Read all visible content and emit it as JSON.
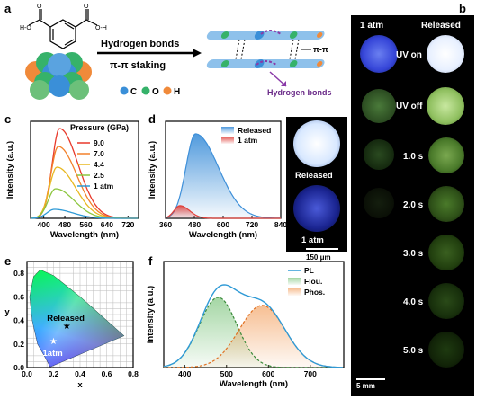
{
  "panel_labels": {
    "a": "a",
    "b": "b",
    "c": "c",
    "d": "d",
    "e": "e",
    "f": "f"
  },
  "panel_a": {
    "arrow_top_label": "Hydrogen bonds",
    "arrow_bottom_label": "π-π staking",
    "legend": [
      {
        "symbol": "●",
        "label": "C",
        "color": "#3a8fd8"
      },
      {
        "symbol": "●",
        "label": "O",
        "color": "#36b26a"
      },
      {
        "symbol": "●",
        "label": "H",
        "color": "#f08a3a"
      }
    ],
    "pi_label": "π-π",
    "hb_label": "Hydrogen bonds",
    "mol_labels": [
      "H-O",
      "O",
      "O",
      "O-H"
    ]
  },
  "panel_b": {
    "col_headers": [
      "1 atm",
      "Released"
    ],
    "row_labels": [
      "UV on",
      "UV off",
      "1.0 s",
      "2.0 s",
      "3.0 s",
      "4.0 s",
      "5.0 s"
    ],
    "scale_bar": "5 mm"
  },
  "panel_d_inset": {
    "label_top": "Released",
    "label_bottom": "1 atm",
    "scale_bar": "150 μm"
  },
  "chart_data": [
    {
      "id": "c",
      "type": "line",
      "title": "Pressure (GPa)",
      "xlabel": "Wavelength (nm)",
      "ylabel": "Intensity (a.u.)",
      "xlim": [
        350,
        760
      ],
      "xticks": [
        400,
        480,
        560,
        640,
        720
      ],
      "series": [
        {
          "name": "9.0",
          "color": "#e8392b",
          "peak": 460,
          "height": 1.0
        },
        {
          "name": "7.0",
          "color": "#f2812a",
          "peak": 455,
          "height": 0.8
        },
        {
          "name": "4.4",
          "color": "#e8b820",
          "peak": 450,
          "height": 0.57
        },
        {
          "name": "2.5",
          "color": "#8cc63f",
          "peak": 445,
          "height": 0.33
        },
        {
          "name": "1 atm",
          "color": "#2f9ad6",
          "peak": 440,
          "height": 0.1
        }
      ]
    },
    {
      "id": "d",
      "type": "area",
      "xlabel": "Wavelength (nm)",
      "ylabel": "Intensity (a.u.)",
      "xlim": [
        360,
        840
      ],
      "xticks": [
        360,
        480,
        600,
        720,
        840
      ],
      "series": [
        {
          "name": "Released",
          "color": "#3d8fd9",
          "peak": 485,
          "height": 1.0
        },
        {
          "name": "1 atm",
          "color": "#e0403a",
          "peak": 420,
          "height": 0.15
        }
      ]
    },
    {
      "id": "e",
      "type": "scatter",
      "xlabel": "x",
      "ylabel": "y",
      "xlim": [
        0,
        0.8
      ],
      "ylim": [
        0,
        0.9
      ],
      "xticks": [
        0.0,
        0.2,
        0.4,
        0.6,
        0.8
      ],
      "yticks": [
        0.0,
        0.2,
        0.4,
        0.6,
        0.8
      ],
      "points": [
        {
          "label": "Released",
          "x": 0.3,
          "y": 0.35,
          "color": "#000"
        },
        {
          "label": "1atm",
          "x": 0.2,
          "y": 0.22,
          "color": "#fff"
        }
      ]
    },
    {
      "id": "f",
      "type": "area",
      "xlabel": "Wavelength (nm)",
      "ylabel": "Intensity (a.u.)",
      "xlim": [
        350,
        780
      ],
      "xticks": [
        400,
        500,
        600,
        700
      ],
      "series": [
        {
          "name": "PL",
          "color": "#2f9ad6",
          "style": "solid"
        },
        {
          "name": "Flou.",
          "color": "#5ab55a",
          "style": "dashed",
          "peak": 480
        },
        {
          "name": "Phos.",
          "color": "#f08a3a",
          "style": "dashed",
          "peak": 580
        }
      ]
    }
  ]
}
